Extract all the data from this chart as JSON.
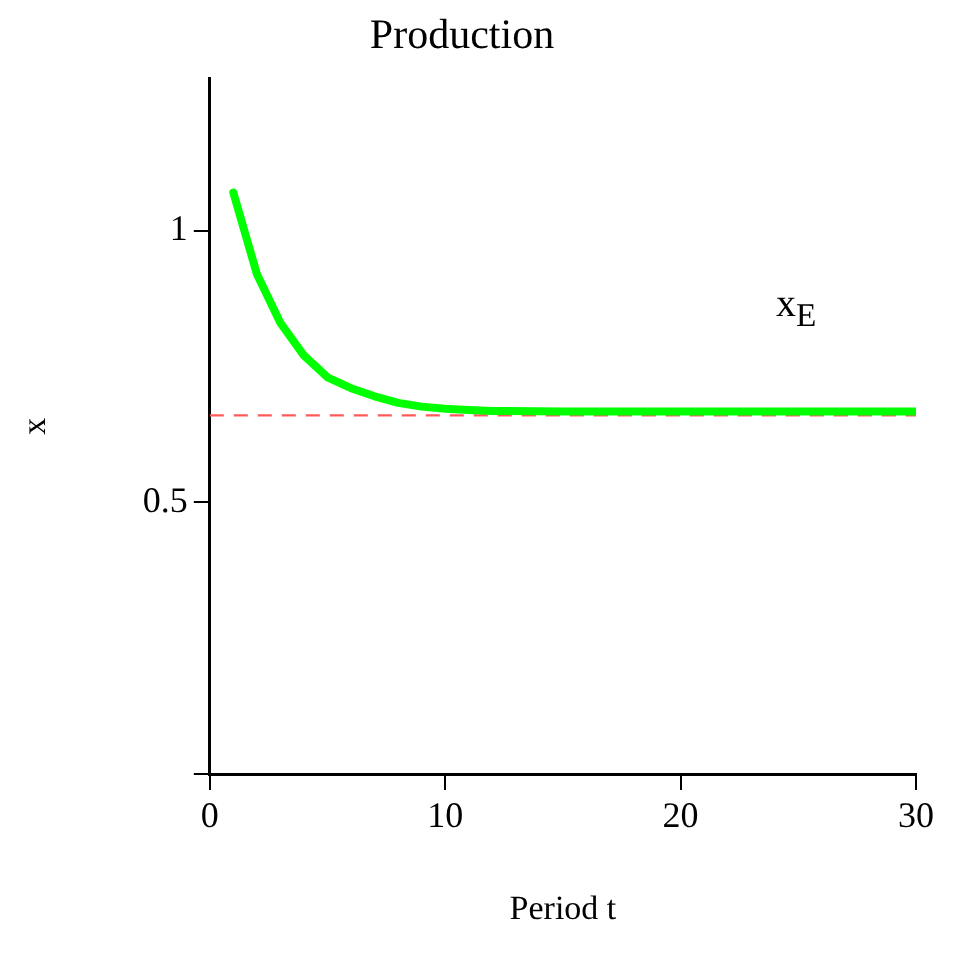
{
  "chart_data": {
    "type": "line",
    "title": "Production",
    "xlabel": "Period t",
    "ylabel": "x",
    "xlim": [
      0,
      30
    ],
    "xticks": [
      0,
      10,
      20,
      30
    ],
    "ylim": [
      0,
      1.28
    ],
    "yticks": [
      {
        "value": 0,
        "label": null
      },
      0.5,
      1
    ],
    "grid": false,
    "legend": false,
    "marker": "none",
    "series": [
      {
        "color": "#00ff00",
        "x": [
          1,
          2,
          3,
          4,
          5,
          6,
          7,
          8,
          9,
          10,
          11,
          12,
          15,
          20,
          25,
          30
        ],
        "values": [
          1.07,
          0.92,
          0.83,
          0.77,
          0.73,
          0.71,
          0.695,
          0.683,
          0.676,
          0.672,
          0.67,
          0.668,
          0.667,
          0.667,
          0.667,
          0.667
        ]
      }
    ],
    "ref_lines": [
      {
        "axis": "y",
        "value": 0.66,
        "label": "x$_{E}$",
        "color": "#ff5a5a",
        "line_style": "dashed"
      }
    ]
  }
}
